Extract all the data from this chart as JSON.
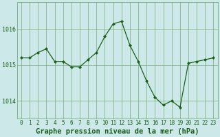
{
  "x": [
    0,
    1,
    2,
    3,
    4,
    5,
    6,
    7,
    8,
    9,
    10,
    11,
    12,
    13,
    14,
    15,
    16,
    17,
    18,
    19,
    20,
    21,
    22,
    23
  ],
  "y": [
    1015.2,
    1015.2,
    1015.35,
    1015.45,
    1015.1,
    1015.1,
    1014.95,
    1014.95,
    1015.15,
    1015.35,
    1015.8,
    1016.15,
    1016.22,
    1015.55,
    1015.1,
    1014.55,
    1014.1,
    1013.88,
    1014.0,
    1013.82,
    1015.05,
    1015.1,
    1015.15,
    1015.2
  ],
  "line_color": "#1a5e1a",
  "marker": "D",
  "marker_size": 2,
  "bg_color": "#cce8e8",
  "grid_color": "#77aa77",
  "xlabel": "Graphe pression niveau de la mer (hPa)",
  "xlabel_fontsize": 7.5,
  "ylabel_ticks": [
    1014,
    1015,
    1016
  ],
  "ylim": [
    1013.5,
    1016.75
  ],
  "xlim": [
    -0.5,
    23.5
  ],
  "tick_fontsize": 5.5,
  "ytick_fontsize": 6.0
}
